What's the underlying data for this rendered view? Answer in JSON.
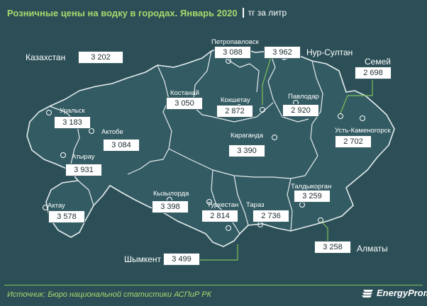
{
  "title": "Розничные цены на водку в городах. Январь 2020",
  "unit": "тг за литр",
  "source": "Источник: Бюро национальной  статистики АСПиР РК",
  "brand": "EnergyProm",
  "colors": {
    "background": "#2c4f57",
    "region_fill": "#335b63",
    "border": "#e4ecee",
    "accent": "#a7d86e",
    "leader": "#7fbf58"
  },
  "country": {
    "name": "Казахстан",
    "price": "3 202"
  },
  "cities": [
    {
      "name": "Петропавловск",
      "price": "3 088"
    },
    {
      "name": "Нур-Султан",
      "price": "3 962"
    },
    {
      "name": "Семей",
      "price": "2 698"
    },
    {
      "name": "Костанай",
      "price": "3 050"
    },
    {
      "name": "Кокшетау",
      "price": "2 872"
    },
    {
      "name": "Павлодар",
      "price": "2 920"
    },
    {
      "name": "Уральск",
      "price": "3 183"
    },
    {
      "name": "Актобе",
      "price": "3 084"
    },
    {
      "name": "Усть-Каменогорск",
      "price": "2 702"
    },
    {
      "name": "Караганда",
      "price": "3 390"
    },
    {
      "name": "Атырау",
      "price": "3 931"
    },
    {
      "name": "Актау",
      "price": "3 578"
    },
    {
      "name": "Кызылорда",
      "price": "3 398"
    },
    {
      "name": "Туркестан",
      "price": "2 814"
    },
    {
      "name": "Тараз",
      "price": "2 736"
    },
    {
      "name": "Талдыкорган",
      "price": "3 259"
    },
    {
      "name": "Алматы",
      "price": "3 258"
    },
    {
      "name": "Шымкент",
      "price": "3 499"
    }
  ]
}
